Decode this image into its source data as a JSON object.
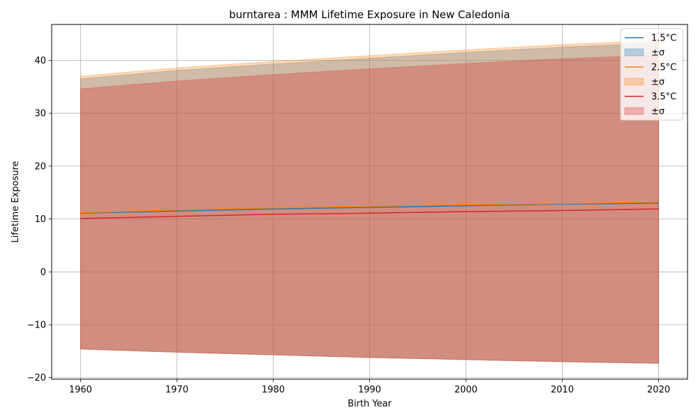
{
  "chart_data": {
    "type": "area",
    "title": "burntarea : MMM Lifetime Exposure in New Caledonia",
    "xlabel": "Birth Year",
    "ylabel": "Lifetime Exposure",
    "x": [
      1960,
      1970,
      1980,
      1990,
      2000,
      2010,
      2020
    ],
    "xlim": [
      1957,
      2023
    ],
    "ylim": [
      -20.3,
      46.8
    ],
    "xticks": [
      1960,
      1970,
      1980,
      1990,
      2000,
      2010,
      2020
    ],
    "yticks": [
      -20,
      -10,
      0,
      10,
      20,
      30,
      40
    ],
    "ytick_labels": [
      "−20",
      "−10",
      "0",
      "10",
      "20",
      "30",
      "40"
    ],
    "grid": true,
    "legend_position": "top-right",
    "series": [
      {
        "name": "1.5°C",
        "band_label": "±σ",
        "color": "#1f77b4",
        "mean": [
          11.1,
          11.5,
          11.9,
          12.2,
          12.5,
          12.8,
          13.0
        ],
        "upper": [
          36.5,
          38.1,
          39.3,
          40.4,
          41.5,
          42.5,
          43.3
        ],
        "lower": [
          -14.6,
          -15.2,
          -15.7,
          -16.2,
          -16.6,
          -17.0,
          -17.3
        ]
      },
      {
        "name": "2.5°C",
        "band_label": "±σ",
        "color": "#ff7f0e",
        "mean": [
          11.2,
          11.7,
          12.1,
          12.4,
          12.7,
          12.9,
          13.2
        ],
        "upper": [
          37.0,
          38.6,
          39.8,
          40.9,
          42.0,
          43.0,
          43.8
        ],
        "lower": [
          -14.6,
          -15.2,
          -15.7,
          -16.2,
          -16.6,
          -17.0,
          -17.3
        ]
      },
      {
        "name": "3.5°C",
        "band_label": "±σ",
        "color": "#d62728",
        "mean": [
          10.1,
          10.5,
          10.9,
          11.1,
          11.4,
          11.6,
          11.9
        ],
        "upper": [
          34.6,
          36.1,
          37.3,
          38.4,
          39.4,
          40.3,
          41.0
        ],
        "lower": [
          -14.6,
          -15.2,
          -15.7,
          -16.2,
          -16.6,
          -17.0,
          -17.3
        ]
      }
    ]
  }
}
